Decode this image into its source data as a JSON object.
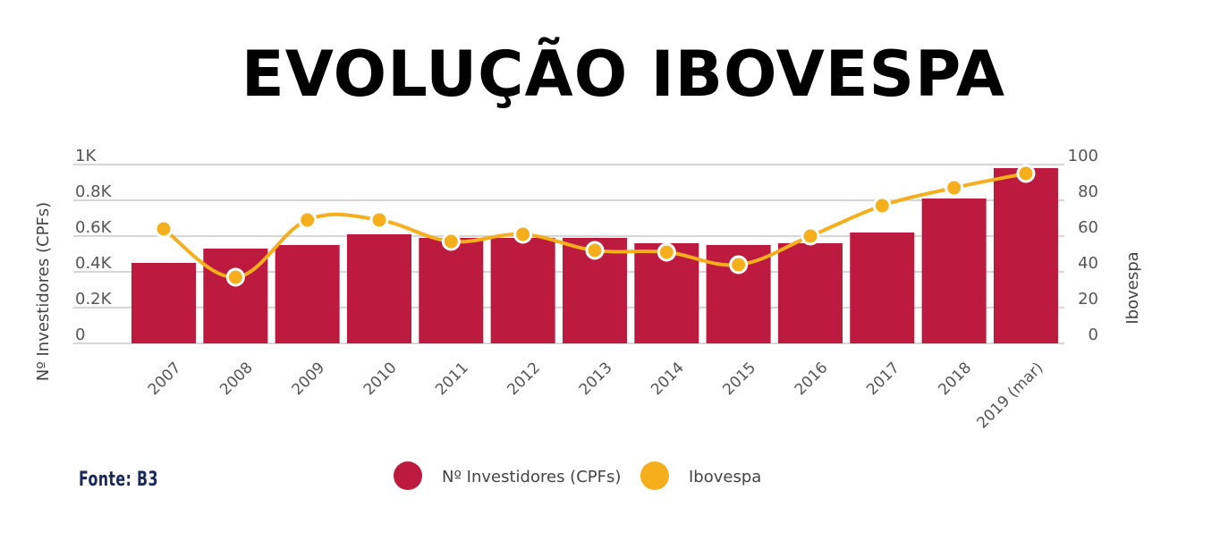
{
  "title": "EVOLUÇÃO IBOVESPA",
  "source": "Fonte: B3",
  "chart_data": {
    "type": "bar+line",
    "title": "EVOLUÇÃO IBOVESPA",
    "categories": [
      "2007",
      "2008",
      "2009",
      "2010",
      "2011",
      "2012",
      "2013",
      "2014",
      "2015",
      "2016",
      "2017",
      "2018",
      "2019 (mar)"
    ],
    "series": [
      {
        "name": "Nº Investidores (CPFs)",
        "type": "bar",
        "axis": "left",
        "color": "#bd1a3f",
        "values": [
          0.45,
          0.53,
          0.55,
          0.61,
          0.59,
          0.59,
          0.59,
          0.56,
          0.55,
          0.56,
          0.62,
          0.81,
          0.98
        ]
      },
      {
        "name": "Ibovespa",
        "type": "line",
        "axis": "right",
        "color": "#f5ae1c",
        "values": [
          64,
          37,
          69,
          69,
          57,
          61,
          52,
          51,
          44,
          60,
          77,
          87,
          95
        ]
      }
    ],
    "y_left": {
      "label": "Nº Investidores (CPFs)",
      "range": [
        0,
        1
      ],
      "ticks": [
        "0",
        "0.2K",
        "0.4K",
        "0.6K",
        "0.8K",
        "1K"
      ]
    },
    "y_right": {
      "label": "Ibovespa",
      "range": [
        0,
        100
      ],
      "ticks": [
        "0",
        "20",
        "40",
        "60",
        "80",
        "100"
      ]
    },
    "grid": true,
    "legend": "bottom-center"
  }
}
